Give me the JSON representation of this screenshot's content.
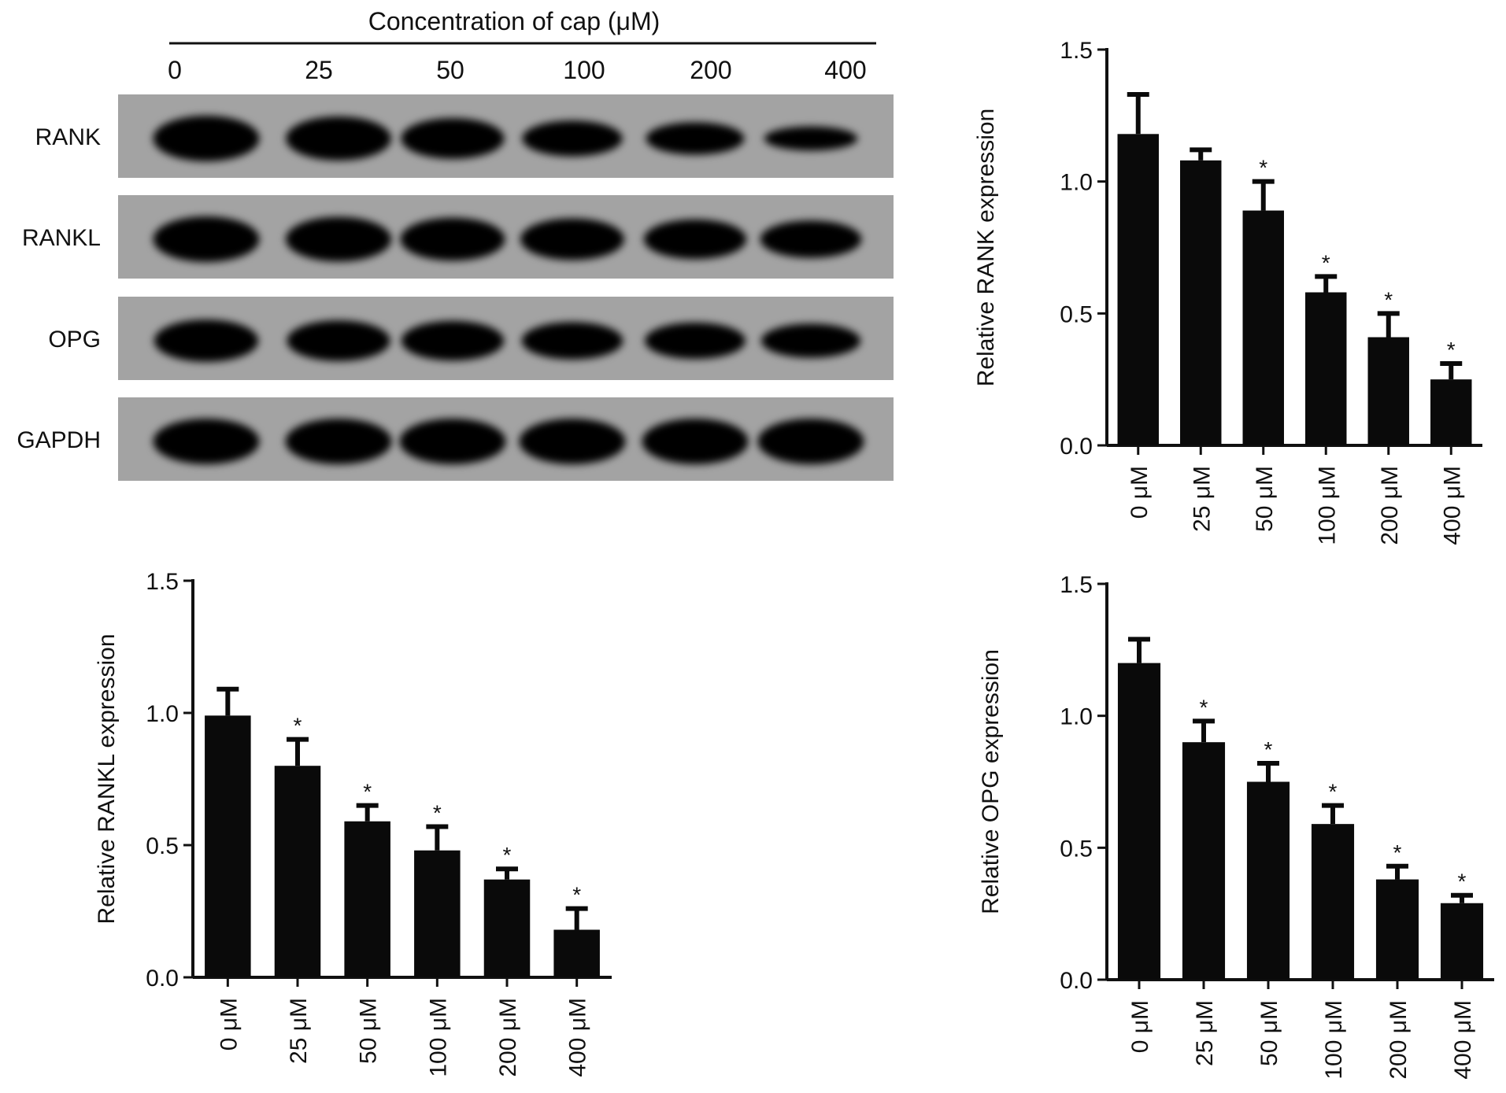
{
  "blot": {
    "header": "Concentration of cap (μM)",
    "lanes": [
      "0",
      "25",
      "50",
      "100",
      "200",
      "400"
    ],
    "rows": [
      {
        "label": "RANK",
        "intensity": [
          1.0,
          0.95,
          0.85,
          0.7,
          0.6,
          0.35
        ]
      },
      {
        "label": "RANKL",
        "intensity": [
          1.0,
          0.97,
          0.92,
          0.88,
          0.82,
          0.75
        ]
      },
      {
        "label": "OPG",
        "intensity": [
          0.9,
          0.85,
          0.82,
          0.75,
          0.72,
          0.65
        ]
      },
      {
        "label": "GAPDH",
        "intensity": [
          1.0,
          1.0,
          1.0,
          1.0,
          1.0,
          1.0
        ]
      }
    ]
  },
  "chart_data": [
    {
      "id": "rank",
      "type": "bar",
      "ylabel": "Relative RANK expression",
      "categories": [
        "0 μM",
        "25 μM",
        "50 μM",
        "100 μM",
        "200 μM",
        "400 μM"
      ],
      "values": [
        1.18,
        1.08,
        0.89,
        0.58,
        0.41,
        0.25
      ],
      "errors": [
        0.15,
        0.04,
        0.11,
        0.06,
        0.09,
        0.06
      ],
      "significance": [
        "",
        "",
        "*",
        "*",
        "*",
        "*"
      ],
      "ylim": [
        0,
        1.5
      ],
      "yticks": [
        "0.0",
        "0.5",
        "1.0",
        "1.5"
      ]
    },
    {
      "id": "rankl",
      "type": "bar",
      "ylabel": "Relative RANKL expression",
      "categories": [
        "0 μM",
        "25 μM",
        "50 μM",
        "100 μM",
        "200 μM",
        "400 μM"
      ],
      "values": [
        0.99,
        0.8,
        0.59,
        0.48,
        0.37,
        0.18
      ],
      "errors": [
        0.1,
        0.1,
        0.06,
        0.09,
        0.04,
        0.08
      ],
      "significance": [
        "",
        "*",
        "*",
        "*",
        "*",
        "*"
      ],
      "ylim": [
        0,
        1.5
      ],
      "yticks": [
        "0.0",
        "0.5",
        "1.0",
        "1.5"
      ]
    },
    {
      "id": "opg",
      "type": "bar",
      "ylabel": "Relative OPG expression",
      "categories": [
        "0 μM",
        "25 μM",
        "50 μM",
        "100 μM",
        "200 μM",
        "400 μM"
      ],
      "values": [
        1.2,
        0.9,
        0.75,
        0.59,
        0.38,
        0.29
      ],
      "errors": [
        0.09,
        0.08,
        0.07,
        0.07,
        0.05,
        0.03
      ],
      "significance": [
        "",
        "*",
        "*",
        "*",
        "*",
        "*"
      ],
      "ylim": [
        0,
        1.5
      ],
      "yticks": [
        "0.0",
        "0.5",
        "1.0",
        "1.5"
      ]
    }
  ]
}
